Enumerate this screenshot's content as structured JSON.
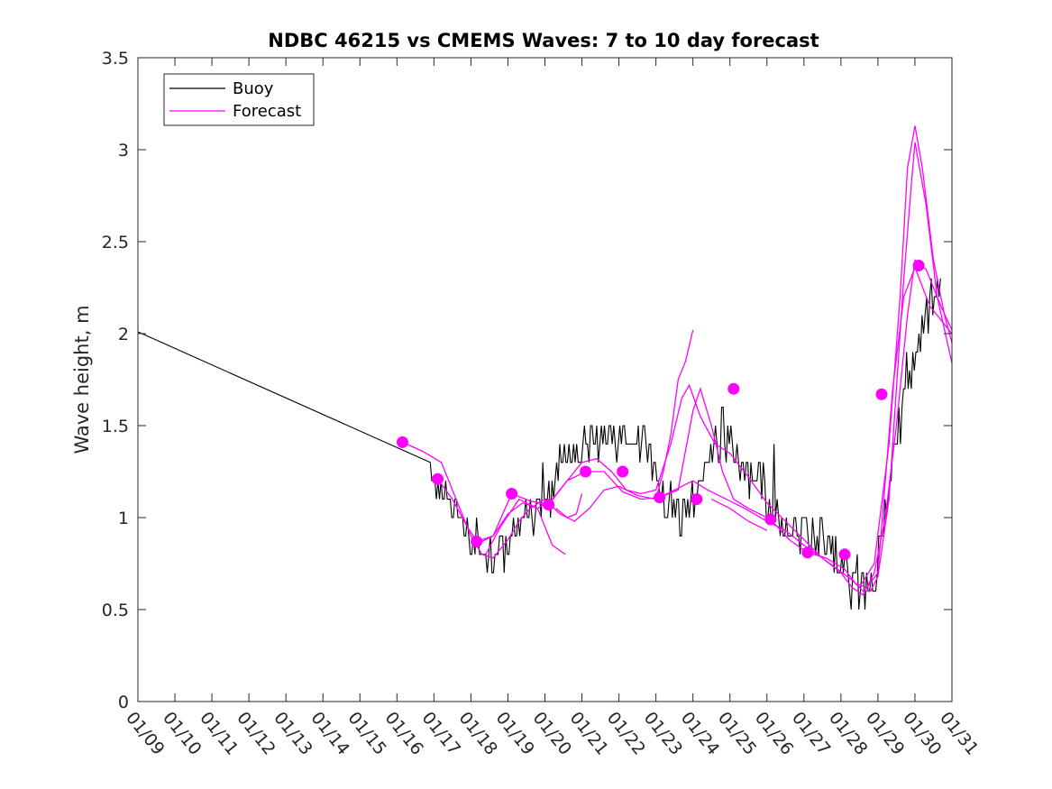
{
  "chart_data": {
    "type": "line",
    "title": "NDBC 46215 vs CMEMS Waves: 7 to 10 day forecast",
    "xlabel": "",
    "ylabel": "Wave height, m",
    "xlim": [
      0,
      22
    ],
    "ylim": [
      0,
      3.5
    ],
    "x_ticks": [
      0,
      1,
      2,
      3,
      4,
      5,
      6,
      7,
      8,
      9,
      10,
      11,
      12,
      13,
      14,
      15,
      16,
      17,
      18,
      19,
      20,
      21,
      22
    ],
    "x_tick_labels": [
      "01/09",
      "01/10",
      "01/11",
      "01/12",
      "01/13",
      "01/14",
      "01/15",
      "01/16",
      "01/17",
      "01/18",
      "01/19",
      "01/20",
      "01/21",
      "01/22",
      "01/23",
      "01/24",
      "01/25",
      "01/26",
      "01/27",
      "01/28",
      "01/29",
      "01/30",
      "01/31"
    ],
    "y_ticks": [
      0,
      0.5,
      1,
      1.5,
      2,
      2.5,
      3,
      3.5
    ],
    "y_tick_labels": [
      "0",
      "0.5",
      "1",
      "1.5",
      "2",
      "2.5",
      "3",
      "3.5"
    ],
    "grid": false,
    "legend": {
      "position": "top-left",
      "entries": [
        {
          "label": "Buoy",
          "color": "#000000"
        },
        {
          "label": "Forecast",
          "color": "#ff00ff"
        }
      ]
    },
    "series": [
      {
        "name": "Buoy",
        "color": "#000000",
        "noisy_from_x": 7.9,
        "points": [
          [
            0,
            2.01
          ],
          [
            7.9,
            1.3
          ],
          [
            8.0,
            1.15
          ],
          [
            8.3,
            1.15
          ],
          [
            8.6,
            1.02
          ],
          [
            8.9,
            0.9
          ],
          [
            9.2,
            0.83
          ],
          [
            9.5,
            0.8
          ],
          [
            9.7,
            0.78
          ],
          [
            10.0,
            0.83
          ],
          [
            10.2,
            0.95
          ],
          [
            10.5,
            1.05
          ],
          [
            10.8,
            1.05
          ],
          [
            11.1,
            1.1
          ],
          [
            11.3,
            1.25
          ],
          [
            11.6,
            1.3
          ],
          [
            11.9,
            1.35
          ],
          [
            12.2,
            1.42
          ],
          [
            12.5,
            1.42
          ],
          [
            12.8,
            1.42
          ],
          [
            13.1,
            1.42
          ],
          [
            13.4,
            1.45
          ],
          [
            13.7,
            1.4
          ],
          [
            14.0,
            1.25
          ],
          [
            14.3,
            1.1
          ],
          [
            14.6,
            1.05
          ],
          [
            14.8,
            1.05
          ],
          [
            15.0,
            1.12
          ],
          [
            15.2,
            1.2
          ],
          [
            15.5,
            1.28
          ],
          [
            15.8,
            1.4
          ],
          [
            16.0,
            1.45
          ],
          [
            16.3,
            1.32
          ],
          [
            16.6,
            1.22
          ],
          [
            16.9,
            1.15
          ],
          [
            17.2,
            1.05
          ],
          [
            17.5,
            0.95
          ],
          [
            17.8,
            0.9
          ],
          [
            18.1,
            0.9
          ],
          [
            18.4,
            0.9
          ],
          [
            18.7,
            0.85
          ],
          [
            19.0,
            0.75
          ],
          [
            19.3,
            0.65
          ],
          [
            19.6,
            0.62
          ],
          [
            19.9,
            0.67
          ],
          [
            20.2,
            1.0
          ],
          [
            20.5,
            1.4
          ],
          [
            20.8,
            1.75
          ],
          [
            21.0,
            1.8
          ],
          [
            21.2,
            2.0
          ],
          [
            21.5,
            2.25
          ],
          [
            21.7,
            2.28
          ]
        ]
      },
      {
        "name": "Forecast",
        "color": "#ff00ff",
        "lines": [
          [
            [
              7.15,
              1.41
            ],
            [
              7.7,
              1.36
            ],
            [
              8.2,
              1.3
            ],
            [
              8.6,
              1.1
            ],
            [
              9.0,
              0.9
            ],
            [
              9.3,
              0.8
            ],
            [
              9.6,
              0.78
            ],
            [
              10.0,
              0.88
            ],
            [
              10.3,
              0.98
            ],
            [
              10.6,
              1.05
            ],
            [
              11.0,
              1.1
            ],
            [
              11.4,
              1.02
            ],
            [
              11.8,
              0.98
            ],
            [
              12.2,
              1.05
            ],
            [
              12.6,
              1.15
            ],
            [
              13.0,
              1.17
            ],
            [
              13.5,
              1.12
            ],
            [
              14.0,
              1.1
            ],
            [
              14.5,
              1.15
            ],
            [
              15.0,
              1.2
            ],
            [
              15.4,
              1.15
            ],
            [
              15.9,
              1.1
            ],
            [
              16.4,
              1.05
            ],
            [
              17.0,
              0.98
            ],
            [
              17.5,
              0.93
            ],
            [
              18.0,
              0.85
            ],
            [
              18.5,
              0.78
            ],
            [
              19.0,
              0.7
            ],
            [
              19.3,
              0.62
            ],
            [
              19.6,
              0.58
            ],
            [
              19.9,
              0.7
            ],
            [
              20.2,
              1.0
            ],
            [
              20.5,
              1.5
            ],
            [
              20.8,
              2.1
            ],
            [
              21.0,
              2.4
            ],
            [
              21.3,
              2.35
            ],
            [
              21.7,
              2.15
            ],
            [
              22.0,
              2.02
            ]
          ],
          [
            [
              8.1,
              1.21
            ],
            [
              8.5,
              1.1
            ],
            [
              8.9,
              0.95
            ],
            [
              9.2,
              0.86
            ],
            [
              9.6,
              0.9
            ],
            [
              10.0,
              1.02
            ],
            [
              10.4,
              1.08
            ],
            [
              10.8,
              1.05
            ],
            [
              11.2,
              1.1
            ],
            [
              11.6,
              1.2
            ],
            [
              12.0,
              1.3
            ],
            [
              12.4,
              1.32
            ],
            [
              12.8,
              1.25
            ],
            [
              13.2,
              1.15
            ],
            [
              13.6,
              1.13
            ],
            [
              14.0,
              1.15
            ],
            [
              14.4,
              1.4
            ],
            [
              14.7,
              1.65
            ],
            [
              14.9,
              1.72
            ],
            [
              15.2,
              1.55
            ],
            [
              15.6,
              1.4
            ],
            [
              16.0,
              1.35
            ],
            [
              16.5,
              1.22
            ],
            [
              17.0,
              1.08
            ],
            [
              17.5,
              0.98
            ],
            [
              18.0,
              0.88
            ],
            [
              18.5,
              0.78
            ],
            [
              18.9,
              0.72
            ],
            [
              19.3,
              0.66
            ],
            [
              19.6,
              0.6
            ],
            [
              19.8,
              0.6
            ],
            [
              20.0,
              0.68
            ],
            [
              20.3,
              1.1
            ],
            [
              20.5,
              1.7
            ],
            [
              20.7,
              2.3
            ],
            [
              20.9,
              2.8
            ],
            [
              21.0,
              3.04
            ],
            [
              21.3,
              2.7
            ],
            [
              21.6,
              2.2
            ],
            [
              22.0,
              1.84
            ]
          ],
          [
            [
              9.15,
              0.87
            ],
            [
              9.6,
              0.9
            ],
            [
              10.1,
              1.13
            ],
            [
              10.6,
              1.09
            ],
            [
              11.1,
              1.07
            ],
            [
              11.6,
              1.2
            ],
            [
              12.1,
              1.25
            ],
            [
              12.6,
              1.25
            ],
            [
              13.1,
              1.14
            ],
            [
              13.6,
              1.1
            ],
            [
              14.1,
              1.11
            ],
            [
              14.6,
              1.15
            ],
            [
              15.0,
              1.58
            ],
            [
              15.2,
              1.7
            ],
            [
              15.5,
              1.5
            ],
            [
              15.8,
              1.25
            ],
            [
              16.1,
              1.1
            ],
            [
              16.5,
              1.05
            ],
            [
              17.1,
              0.99
            ],
            [
              17.6,
              0.88
            ],
            [
              18.1,
              0.81
            ],
            [
              18.6,
              0.78
            ],
            [
              19.1,
              0.72
            ],
            [
              19.4,
              0.64
            ],
            [
              19.7,
              0.62
            ],
            [
              20.0,
              0.7
            ],
            [
              20.2,
              1.2
            ],
            [
              20.4,
              1.7
            ],
            [
              20.7,
              2.2
            ],
            [
              21.0,
              2.36
            ],
            [
              21.4,
              2.15
            ],
            [
              21.8,
              2.05
            ],
            [
              22.0,
              2.0
            ]
          ],
          [
            [
              9.4,
              0.8
            ],
            [
              9.8,
              0.95
            ],
            [
              10.3,
              1.1
            ],
            [
              10.8,
              1.05
            ],
            [
              11.2,
              0.85
            ],
            [
              11.55,
              0.8
            ]
          ],
          [
            [
              11.3,
              1.05
            ],
            [
              11.6,
              1.0
            ],
            [
              11.85,
              1.02
            ],
            [
              12.0,
              1.13
            ]
          ],
          [
            [
              14.0,
              1.1
            ],
            [
              14.2,
              1.25
            ],
            [
              14.4,
              1.45
            ],
            [
              14.6,
              1.75
            ],
            [
              14.8,
              1.85
            ],
            [
              15.0,
              2.02
            ]
          ],
          [
            [
              15.5,
              1.1
            ],
            [
              16.0,
              1.05
            ],
            [
              16.5,
              0.98
            ],
            [
              17.0,
              0.93
            ]
          ],
          [
            [
              19.5,
              0.62
            ],
            [
              19.9,
              0.75
            ],
            [
              20.3,
              1.4
            ],
            [
              20.6,
              2.2
            ],
            [
              20.8,
              2.9
            ],
            [
              21.0,
              3.13
            ],
            [
              21.2,
              2.9
            ],
            [
              21.5,
              2.4
            ],
            [
              21.8,
              2.1
            ],
            [
              22.0,
              1.95
            ]
          ]
        ],
        "markers": [
          [
            7.15,
            1.41
          ],
          [
            8.1,
            1.21
          ],
          [
            9.15,
            0.87
          ],
          [
            10.1,
            1.13
          ],
          [
            11.1,
            1.07
          ],
          [
            12.1,
            1.25
          ],
          [
            13.1,
            1.25
          ],
          [
            14.1,
            1.11
          ],
          [
            15.1,
            1.1
          ],
          [
            16.1,
            1.7
          ],
          [
            17.1,
            0.99
          ],
          [
            18.1,
            0.81
          ],
          [
            19.1,
            0.8
          ],
          [
            20.1,
            1.67
          ],
          [
            21.1,
            2.37
          ]
        ]
      }
    ]
  }
}
